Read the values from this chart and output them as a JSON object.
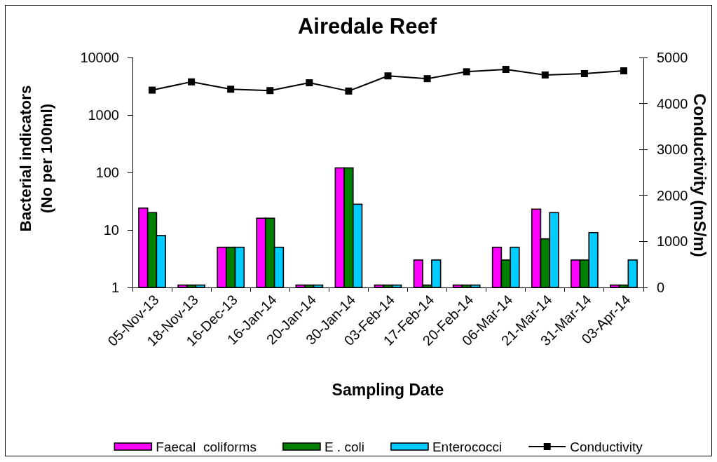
{
  "chart_data": {
    "type": "bar",
    "title": "Airedale Reef",
    "xlabel": "Sampling Date",
    "ylabel": "Bacterial indicators\n(No per 100ml)",
    "y2label": "Conductivity (mS/m)",
    "categories": [
      "05-Nov-13",
      "18-Nov-13",
      "16-Dec-13",
      "16-Jan-14",
      "20-Jan-14",
      "30-Jan-14",
      "03-Feb-14",
      "17-Feb-14",
      "20-Feb-14",
      "06-Mar-14",
      "21-Mar-14",
      "31-Mar-14",
      "03-Apr-14"
    ],
    "log": "y",
    "ylim": [
      1,
      10000
    ],
    "yticks": [
      1,
      10,
      100,
      1000,
      10000
    ],
    "y2lim": [
      0,
      5000
    ],
    "y2ticks": [
      0,
      1000,
      2000,
      3000,
      4000,
      5000
    ],
    "legend": "bottom",
    "series": [
      {
        "name": "Faecal  coliforms",
        "color": "#ff00ff",
        "values": [
          24,
          1.1,
          5,
          16,
          1.1,
          120,
          1.1,
          3,
          1.1,
          5,
          23,
          3,
          1.1
        ]
      },
      {
        "name": "E . coli",
        "color": "#008000",
        "values": [
          20,
          1.1,
          5,
          16,
          1.1,
          120,
          1.1,
          1.1,
          1.1,
          3,
          7,
          3,
          1.1
        ]
      },
      {
        "name": "Enterococci",
        "color": "#00ccff",
        "values": [
          8,
          1.1,
          5,
          5,
          1.1,
          28,
          1.1,
          3,
          1.1,
          5,
          20,
          9,
          3
        ]
      },
      {
        "name": "Conductivity",
        "type": "line",
        "axis": "y2",
        "color": "#000000",
        "marker": "square",
        "values": [
          4290,
          4470,
          4310,
          4280,
          4450,
          4270,
          4600,
          4540,
          4690,
          4740,
          4620,
          4650,
          4710
        ]
      }
    ]
  }
}
